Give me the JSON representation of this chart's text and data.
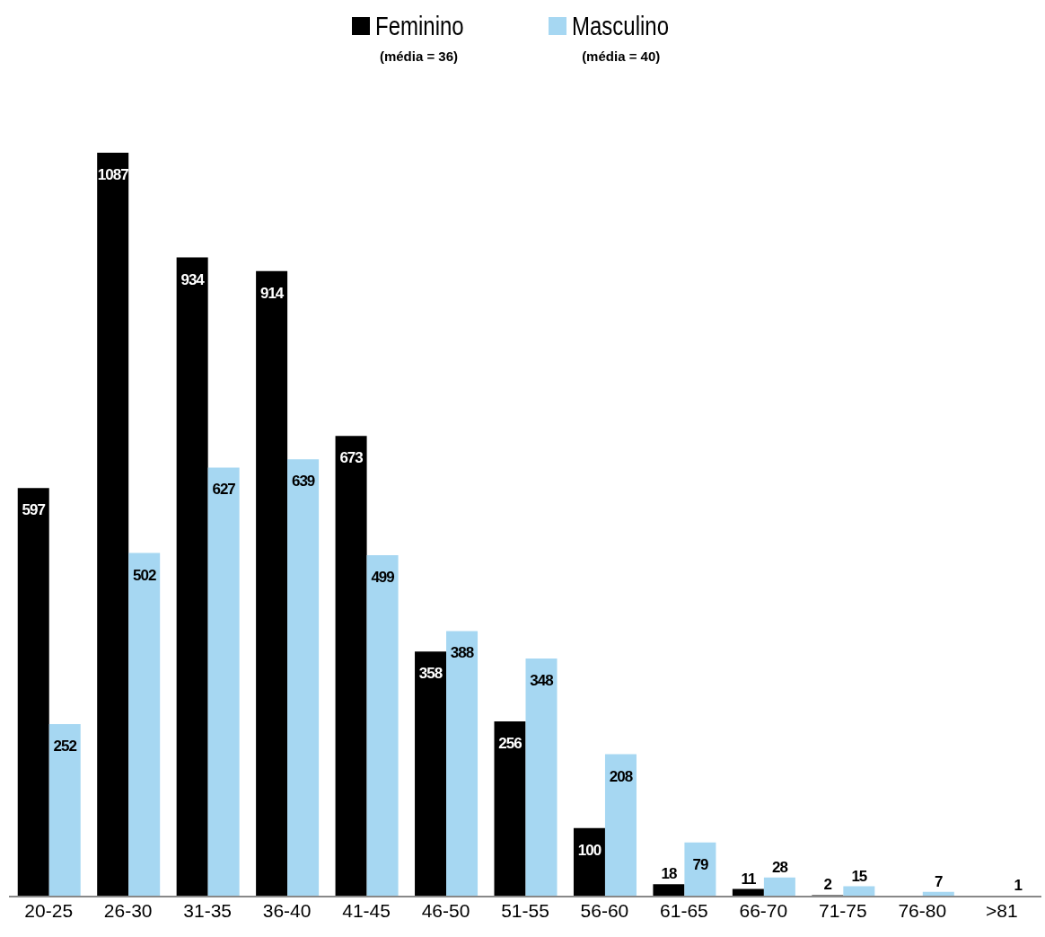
{
  "chart_data": {
    "type": "bar",
    "categories": [
      "20-25",
      "26-30",
      "31-35",
      "36-40",
      "41-45",
      "46-50",
      "51-55",
      "56-60",
      "61-65",
      "66-70",
      "71-75",
      "76-80",
      ">81"
    ],
    "series": [
      {
        "name": "Feminino",
        "color": "#000000",
        "values": [
          597,
          1087,
          934,
          914,
          673,
          358,
          256,
          100,
          18,
          11,
          2,
          null,
          null
        ]
      },
      {
        "name": "Masculino",
        "color": "#a6d7f2",
        "values": [
          252,
          502,
          627,
          639,
          499,
          388,
          348,
          208,
          79,
          28,
          15,
          7,
          1
        ]
      }
    ],
    "annotations": [
      "(média  =  36)",
      "(média  =  40)"
    ],
    "data_labels": true,
    "legend": "top",
    "grid": false
  }
}
